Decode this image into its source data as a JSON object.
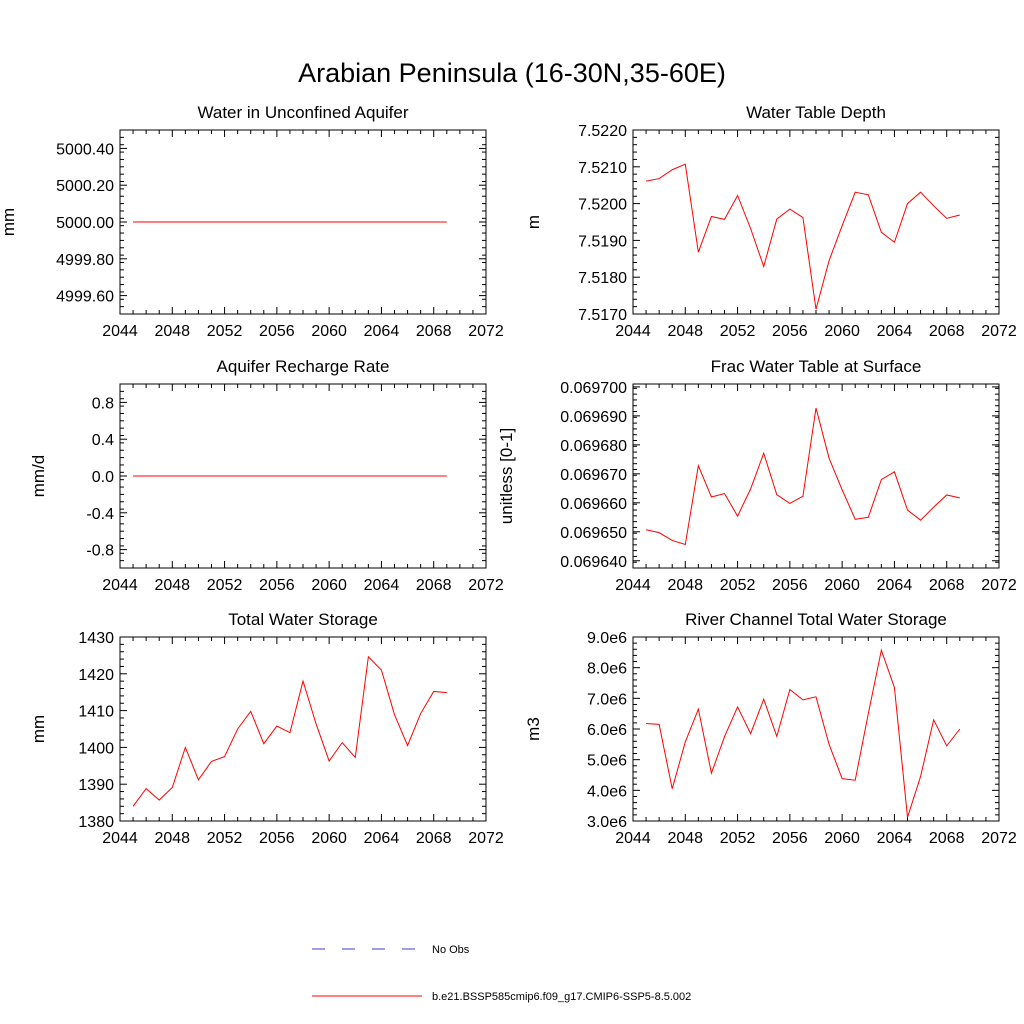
{
  "figure": {
    "title": "Arabian Peninsula (16-30N,35-60E)",
    "legend": [
      {
        "label": "No Obs",
        "color": "#3b3bd6",
        "style": "dashed"
      },
      {
        "label": "b.e21.BSSP585cmip6.f09_g17.CMIP6-SSP5-8.5.002",
        "color": "#ff0000",
        "style": "solid"
      }
    ]
  },
  "chart_data": [
    {
      "type": "line",
      "title": "Water in Unconfined Aquifer",
      "ylabel": "mm",
      "xlim": [
        2044,
        2072
      ],
      "ylim": [
        4999.5,
        5000.5
      ],
      "xticks": [
        2044,
        2048,
        2052,
        2056,
        2060,
        2064,
        2068,
        2072
      ],
      "yticks": [
        4999.6,
        4999.8,
        5000.0,
        5000.2,
        5000.4
      ],
      "ytick_labels": [
        "4999.60",
        "4999.80",
        "5000.00",
        "5000.20",
        "5000.40"
      ],
      "x": [
        2045,
        2046,
        2047,
        2048,
        2049,
        2050,
        2051,
        2052,
        2053,
        2054,
        2055,
        2056,
        2057,
        2058,
        2059,
        2060,
        2061,
        2062,
        2063,
        2064,
        2065,
        2066,
        2067,
        2068,
        2069
      ],
      "series": [
        {
          "name": "b.e21.BSSP585cmip6.f09_g17.CMIP6-SSP5-8.5.002",
          "color": "#ff0000",
          "values": [
            5000,
            5000,
            5000,
            5000,
            5000,
            5000,
            5000,
            5000,
            5000,
            5000,
            5000,
            5000,
            5000,
            5000,
            5000,
            5000,
            5000,
            5000,
            5000,
            5000,
            5000,
            5000,
            5000,
            5000,
            5000
          ]
        }
      ]
    },
    {
      "type": "line",
      "title": "Water Table Depth",
      "ylabel": "m",
      "xlim": [
        2044,
        2072
      ],
      "ylim": [
        7.517,
        7.522
      ],
      "xticks": [
        2044,
        2048,
        2052,
        2056,
        2060,
        2064,
        2068,
        2072
      ],
      "yticks": [
        7.517,
        7.518,
        7.519,
        7.52,
        7.521,
        7.522
      ],
      "ytick_labels": [
        "7.5170",
        "7.5180",
        "7.5190",
        "7.5200",
        "7.5210",
        "7.5220"
      ],
      "x": [
        2045,
        2046,
        2047,
        2048,
        2049,
        2050,
        2051,
        2052,
        2053,
        2054,
        2055,
        2056,
        2057,
        2058,
        2059,
        2060,
        2061,
        2062,
        2063,
        2064,
        2065,
        2066,
        2067,
        2068,
        2069
      ],
      "series": [
        {
          "name": "b.e21.BSSP585cmip6.f09_g17.CMIP6-SSP5-8.5.002",
          "color": "#ff0000",
          "values": [
            7.52061,
            7.52068,
            7.52092,
            7.52107,
            7.51868,
            7.51965,
            7.51957,
            7.52022,
            7.51932,
            7.51829,
            7.51958,
            7.51985,
            7.51962,
            7.51713,
            7.51845,
            7.5194,
            7.52031,
            7.52024,
            7.51922,
            7.51895,
            7.52,
            7.52031,
            7.51994,
            7.5196,
            7.51969
          ]
        }
      ]
    },
    {
      "type": "line",
      "title": "Aquifer Recharge Rate",
      "ylabel": "mm/d",
      "xlim": [
        2044,
        2072
      ],
      "ylim": [
        -1.0,
        1.0
      ],
      "xticks": [
        2044,
        2048,
        2052,
        2056,
        2060,
        2064,
        2068,
        2072
      ],
      "yticks": [
        -0.8,
        -0.4,
        0.0,
        0.4,
        0.8
      ],
      "ytick_labels": [
        "-0.8",
        "-0.4",
        "0.0",
        "0.4",
        "0.8"
      ],
      "x": [
        2045,
        2046,
        2047,
        2048,
        2049,
        2050,
        2051,
        2052,
        2053,
        2054,
        2055,
        2056,
        2057,
        2058,
        2059,
        2060,
        2061,
        2062,
        2063,
        2064,
        2065,
        2066,
        2067,
        2068,
        2069
      ],
      "series": [
        {
          "name": "b.e21.BSSP585cmip6.f09_g17.CMIP6-SSP5-8.5.002",
          "color": "#ff0000",
          "values": [
            0,
            0,
            0,
            0,
            0,
            0,
            0,
            0,
            0,
            0,
            0,
            0,
            0,
            0,
            0,
            0,
            0,
            0,
            0,
            0,
            0,
            0,
            0,
            0,
            0
          ]
        }
      ]
    },
    {
      "type": "line",
      "title": "Frac Water Table at Surface",
      "ylabel": "unitless [0-1]",
      "xlim": [
        2044,
        2072
      ],
      "ylim": [
        0.0696375,
        0.069701
      ],
      "xticks": [
        2044,
        2048,
        2052,
        2056,
        2060,
        2064,
        2068,
        2072
      ],
      "yticks": [
        0.06964,
        0.06965,
        0.06966,
        0.06967,
        0.06968,
        0.06969,
        0.0697
      ],
      "ytick_labels": [
        "0.069640",
        "0.069650",
        "0.069660",
        "0.069670",
        "0.069680",
        "0.069690",
        "0.069700"
      ],
      "x": [
        2045,
        2046,
        2047,
        2048,
        2049,
        2050,
        2051,
        2052,
        2053,
        2054,
        2055,
        2056,
        2057,
        2058,
        2059,
        2060,
        2061,
        2062,
        2063,
        2064,
        2065,
        2066,
        2067,
        2068,
        2069
      ],
      "series": [
        {
          "name": "b.e21.BSSP585cmip6.f09_g17.CMIP6-SSP5-8.5.002",
          "color": "#ff0000",
          "values": [
            0.0696507,
            0.0696497,
            0.069647,
            0.0696456,
            0.0696728,
            0.069662,
            0.0696632,
            0.0696554,
            0.0696648,
            0.0696771,
            0.0696628,
            0.0696598,
            0.0696623,
            0.0696927,
            0.0696754,
            0.0696645,
            0.0696543,
            0.069655,
            0.069668,
            0.0696707,
            0.0696575,
            0.069654,
            0.0696585,
            0.0696627,
            0.0696617
          ]
        }
      ]
    },
    {
      "type": "line",
      "title": "Total Water Storage",
      "ylabel": "mm",
      "xlim": [
        2044,
        2072
      ],
      "ylim": [
        1380,
        1430
      ],
      "xticks": [
        2044,
        2048,
        2052,
        2056,
        2060,
        2064,
        2068,
        2072
      ],
      "yticks": [
        1380,
        1390,
        1400,
        1410,
        1420,
        1430
      ],
      "ytick_labels": [
        "1380",
        "1390",
        "1400",
        "1410",
        "1420",
        "1430"
      ],
      "x": [
        2045,
        2046,
        2047,
        2048,
        2049,
        2050,
        2051,
        2052,
        2053,
        2054,
        2055,
        2056,
        2057,
        2058,
        2059,
        2060,
        2061,
        2062,
        2063,
        2064,
        2065,
        2066,
        2067,
        2068,
        2069
      ],
      "series": [
        {
          "name": "b.e21.BSSP585cmip6.f09_g17.CMIP6-SSP5-8.5.002",
          "color": "#ff0000",
          "values": [
            1384.0,
            1388.8,
            1385.7,
            1389.1,
            1400.0,
            1391.2,
            1396.2,
            1397.5,
            1405.0,
            1409.8,
            1401.0,
            1405.8,
            1404.0,
            1418.0,
            1406.4,
            1396.3,
            1401.3,
            1397.3,
            1424.6,
            1421.0,
            1408.9,
            1400.5,
            1409.2,
            1415.2,
            1414.9
          ]
        }
      ]
    },
    {
      "type": "line",
      "title": "River Channel Total Water Storage",
      "ylabel": "m3",
      "xlim": [
        2044,
        2072
      ],
      "ylim": [
        3000000,
        9000000
      ],
      "xticks": [
        2044,
        2048,
        2052,
        2056,
        2060,
        2064,
        2068,
        2072
      ],
      "yticks": [
        3000000,
        4000000,
        5000000,
        6000000,
        7000000,
        8000000,
        9000000
      ],
      "ytick_labels": [
        "3.0e6",
        "4.0e6",
        "5.0e6",
        "6.0e6",
        "7.0e6",
        "8.0e6",
        "9.0e6"
      ],
      "x": [
        2045,
        2046,
        2047,
        2048,
        2049,
        2050,
        2051,
        2052,
        2053,
        2054,
        2055,
        2056,
        2057,
        2058,
        2059,
        2060,
        2061,
        2062,
        2063,
        2064,
        2065,
        2066,
        2067,
        2068,
        2069
      ],
      "series": [
        {
          "name": "b.e21.BSSP585cmip6.f09_g17.CMIP6-SSP5-8.5.002",
          "color": "#ff0000",
          "values": [
            6180000,
            6150000,
            4050000,
            5580000,
            6650000,
            4560000,
            5750000,
            6720000,
            5850000,
            6970000,
            5760000,
            7290000,
            6950000,
            7050000,
            5500000,
            4380000,
            4330000,
            6500000,
            8570000,
            7350000,
            3120000,
            4450000,
            6300000,
            5450000,
            6000000
          ]
        }
      ]
    }
  ]
}
